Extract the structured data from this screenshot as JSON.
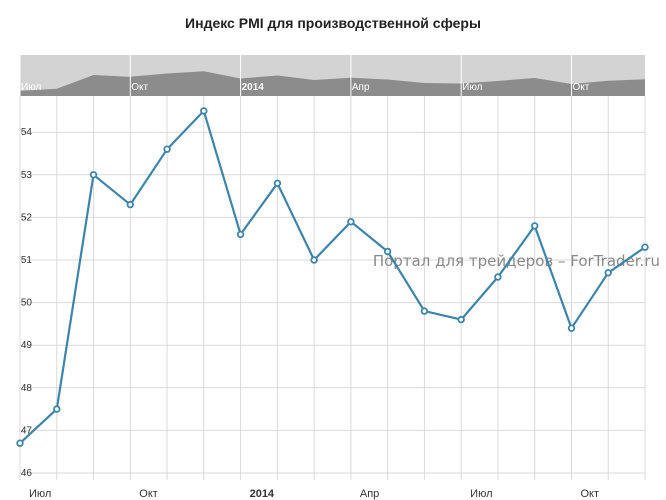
{
  "title": "Индекс PMI для производственной сферы",
  "watermark": "Портал для трейдеров – ForTrader.ru",
  "colors": {
    "line": "#3d85a8",
    "navigator_bg": "#d3d3d3",
    "navigator_area": "#8c8c8c",
    "grid": "#d9d9d9"
  },
  "navigator": {
    "labels": [
      "Июл",
      "Окт",
      "2014",
      "Апр",
      "Июл",
      "Окт"
    ]
  },
  "chart_data": {
    "type": "line",
    "title": "Индекс PMI для производственной сферы",
    "xlabel": "",
    "ylabel": "",
    "ylim": [
      46,
      55
    ],
    "y_ticks": [
      46,
      47,
      48,
      49,
      50,
      51,
      52,
      53,
      54
    ],
    "x_tick_labels": [
      "Июл",
      "Окт",
      "2014",
      "Апр",
      "Июл",
      "Окт"
    ],
    "bold_x_ticks": [
      "2014"
    ],
    "grid": true,
    "series": [
      {
        "x": [
          "2013-07",
          "2013-08",
          "2013-09",
          "2013-10",
          "2013-11",
          "2013-12",
          "2014-01",
          "2014-02",
          "2014-03",
          "2014-04",
          "2014-05",
          "2014-06",
          "2014-07",
          "2014-08",
          "2014-09",
          "2014-10",
          "2014-11",
          "2014-12"
        ],
        "values": [
          46.7,
          47.5,
          53.0,
          52.3,
          53.6,
          54.5,
          51.6,
          52.8,
          51.0,
          51.9,
          51.2,
          49.8,
          49.6,
          50.6,
          51.8,
          49.4,
          50.7,
          51.3
        ]
      }
    ]
  }
}
